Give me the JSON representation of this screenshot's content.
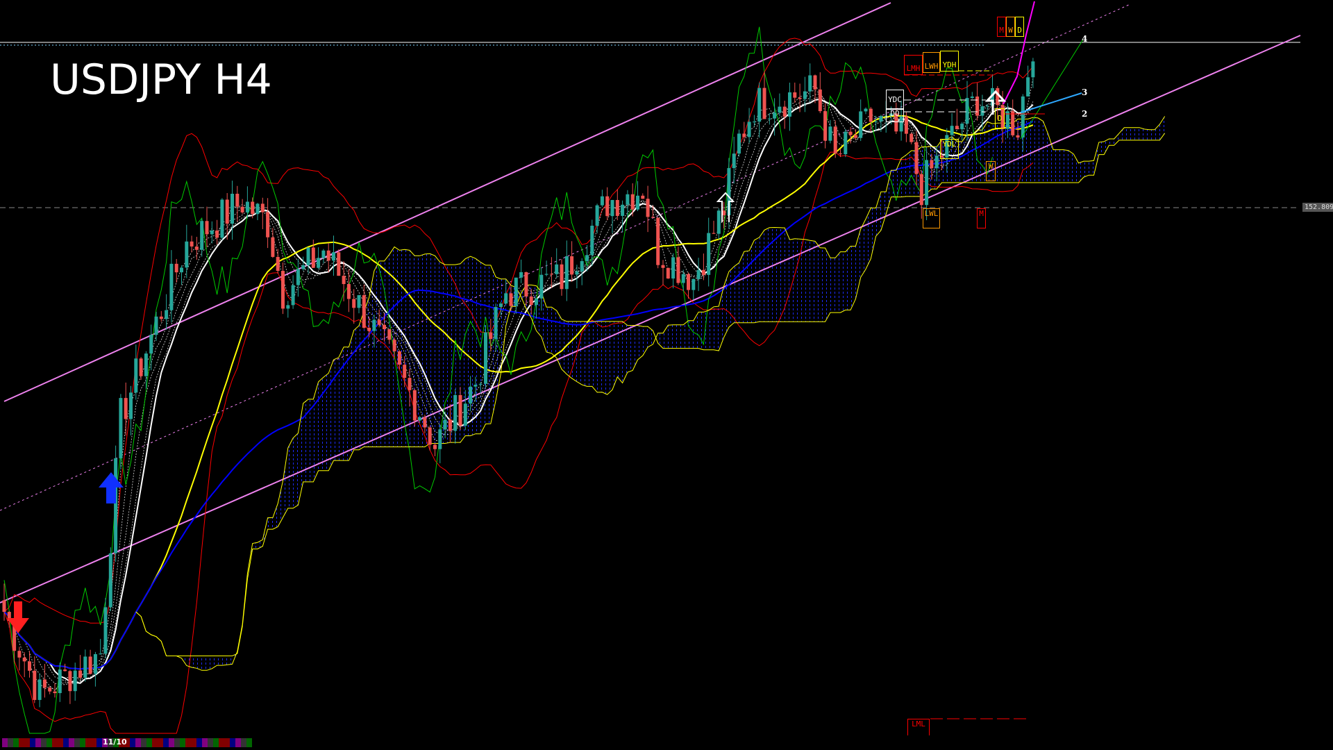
{
  "header": {
    "symbol_timeframe": "USDJPY H4"
  },
  "price_tag": "152.809",
  "level_labels": {
    "l4": "4",
    "l3": "3",
    "l2": "2"
  },
  "boxes": {
    "M_top": "M",
    "W_top": "W",
    "D_top": "D",
    "LMH": "LMH",
    "LWH": "LWH",
    "YDH": "YDH",
    "YDC": "YDC",
    "DO": "DO",
    "D": "D",
    "YDL": "YDL",
    "W": "W",
    "LWL": "LWL",
    "M": "M",
    "LML": "LML"
  },
  "timeline": {
    "date_label": "11/10"
  },
  "colors": {
    "background": "#000000",
    "bull_candle": "#26a69a",
    "bear_candle": "#ef5350",
    "channel": "#ee82ee",
    "bollinger": "#ff0000",
    "ma_fast": "#ffffff",
    "ma_mid": "#ffff00",
    "ma_slow": "#0000ff",
    "oscillator": "#00cc00",
    "cloud": "#ffff00",
    "cloud_fill": "#0000ff",
    "monthly": "#ff0000",
    "weekly": "#ff9900",
    "daily": "#ffff00"
  },
  "chart_data": {
    "type": "candlestick",
    "symbol": "USDJPY",
    "timeframe": "H4",
    "reference_price": 152.809,
    "close_keypoints": [
      [
        0,
        149.32
      ],
      [
        7,
        148.6
      ],
      [
        19,
        148.96
      ],
      [
        23,
        151.0
      ],
      [
        36,
        152.5
      ],
      [
        47,
        152.86
      ],
      [
        52,
        152.68
      ],
      [
        55,
        152.08
      ],
      [
        63,
        152.44
      ],
      [
        71,
        151.9
      ],
      [
        82,
        151.06
      ],
      [
        85,
        150.76
      ],
      [
        93,
        151.3
      ],
      [
        99,
        152.08
      ],
      [
        110,
        152.2
      ],
      [
        119,
        152.86
      ],
      [
        126,
        152.98
      ],
      [
        129,
        152.44
      ],
      [
        136,
        152.2
      ],
      [
        142,
        152.8
      ],
      [
        145,
        153.4
      ],
      [
        148,
        153.7
      ],
      [
        160,
        153.82
      ],
      [
        164,
        153.22
      ],
      [
        171,
        153.58
      ],
      [
        178,
        153.4
      ],
      [
        181,
        152.98
      ],
      [
        185,
        153.28
      ],
      [
        192,
        153.76
      ],
      [
        200,
        153.52
      ],
      [
        203,
        154.24
      ]
    ],
    "indicators": [
      "linear regression channel",
      "moving averages",
      "bollinger bands",
      "ichimoku cloud",
      "pivot levels"
    ]
  }
}
